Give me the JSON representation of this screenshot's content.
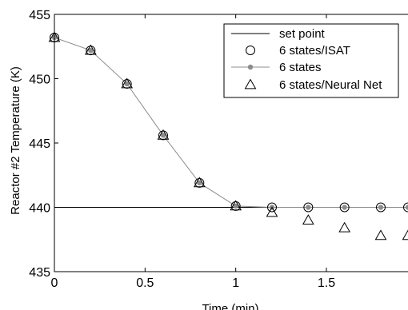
{
  "chart_data": {
    "type": "line",
    "title": "",
    "xlabel": "Time (min)",
    "ylabel": "Reactor #2 Temperature (K)",
    "xlim": [
      0,
      1.95
    ],
    "ylim": [
      435,
      455
    ],
    "xticks": [
      0,
      0.5,
      1,
      1.5
    ],
    "xtick_labels": [
      "0",
      "0.5",
      "1",
      "1.5"
    ],
    "yticks": [
      435,
      440,
      445,
      450,
      455
    ],
    "ytick_labels": [
      "435",
      "440",
      "445",
      "450",
      "455"
    ],
    "grid": false,
    "legend_position": "top-right",
    "setpoint": 440,
    "series": [
      {
        "name": "set point",
        "style": "line",
        "color": "#000000",
        "x": [
          0,
          1.95
        ],
        "y": [
          440,
          440
        ]
      },
      {
        "name": "6 states/ISAT",
        "style": "circle",
        "color": "#000000",
        "x": [
          0,
          0.2,
          0.4,
          0.6,
          0.8,
          1.0,
          1.2,
          1.4,
          1.6,
          1.8,
          1.95
        ],
        "y": [
          453.2,
          452.2,
          449.6,
          445.6,
          441.9,
          440.1,
          440.0,
          440.0,
          440.0,
          440.0,
          440.0
        ]
      },
      {
        "name": "6 states",
        "style": "line-dot",
        "color": "#8c8c8c",
        "x": [
          0,
          0.2,
          0.4,
          0.6,
          0.8,
          1.0,
          1.2,
          1.4,
          1.6,
          1.8,
          1.95
        ],
        "y": [
          453.2,
          452.2,
          449.6,
          445.6,
          441.9,
          440.1,
          440.0,
          440.0,
          440.0,
          440.0,
          440.0
        ]
      },
      {
        "name": "6 states/Neural Net",
        "style": "triangle",
        "color": "#000000",
        "x": [
          0,
          0.2,
          0.4,
          0.6,
          0.8,
          1.0,
          1.2,
          1.4,
          1.6,
          1.8,
          1.95
        ],
        "y": [
          453.2,
          452.2,
          449.6,
          445.6,
          441.9,
          440.1,
          439.6,
          439.0,
          438.4,
          437.8,
          437.8
        ]
      }
    ]
  }
}
